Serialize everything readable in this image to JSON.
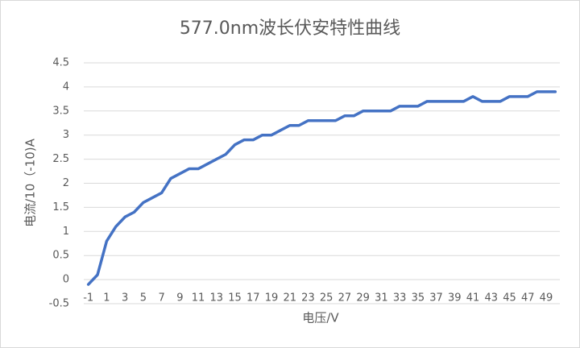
{
  "chart_data": {
    "type": "line",
    "title": "577.0nm波长伏安特性曲线",
    "x_label": "电压/V",
    "y_label": "电流/10（-10)A",
    "categories": [
      "-1",
      null,
      "1",
      null,
      "3",
      null,
      "5",
      null,
      "7",
      null,
      "9",
      null,
      "11",
      null,
      "13",
      null,
      "15",
      null,
      "17",
      null,
      "19",
      null,
      "21",
      null,
      "23",
      null,
      "25",
      null,
      "27",
      null,
      "29",
      null,
      "31",
      null,
      "33",
      null,
      "35",
      null,
      "37",
      null,
      "39",
      null,
      "41",
      null,
      "43",
      null,
      "45",
      null,
      "47",
      null,
      "49",
      null
    ],
    "values": [
      -0.1,
      0.1,
      0.8,
      1.1,
      1.3,
      1.4,
      1.6,
      1.7,
      1.8,
      2.1,
      2.2,
      2.3,
      2.3,
      2.4,
      2.5,
      2.6,
      2.8,
      2.9,
      2.9,
      3.0,
      3.0,
      3.1,
      3.2,
      3.2,
      3.3,
      3.3,
      3.3,
      3.3,
      3.4,
      3.4,
      3.5,
      3.5,
      3.5,
      3.5,
      3.6,
      3.6,
      3.6,
      3.7,
      3.7,
      3.7,
      3.7,
      3.7,
      3.8,
      3.7,
      3.7,
      3.7,
      3.8,
      3.8,
      3.8,
      3.9,
      3.9,
      3.9
    ],
    "color": "#4472c4",
    "ylim": [
      -0.5,
      4.5
    ],
    "yticks": [
      -0.5,
      0,
      0.5,
      1,
      1.5,
      2,
      2.5,
      3,
      3.5,
      4,
      4.5
    ],
    "grid": true
  }
}
